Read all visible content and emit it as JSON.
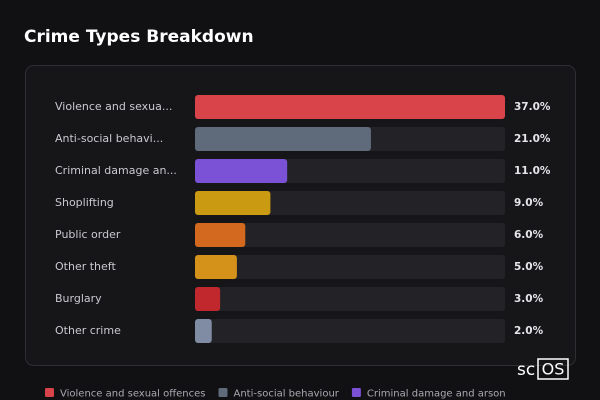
{
  "chart_data": {
    "type": "bar",
    "orientation": "horizontal",
    "title": "Crime Types Breakdown",
    "categories": [
      "Violence and sexua...",
      "Anti-social behavi...",
      "Criminal damage an...",
      "Shoplifting",
      "Public order",
      "Other theft",
      "Burglary",
      "Other crime"
    ],
    "values": [
      37,
      21,
      11,
      9,
      6,
      5,
      3,
      2
    ],
    "value_labels": [
      "37.0%",
      "21.0%",
      "11.0%",
      "9.0%",
      "6.0%",
      "5.0%",
      "3.0%",
      "2.0%"
    ],
    "colors": [
      "#d9434a",
      "#5f6b7b",
      "#7b52d6",
      "#c99a12",
      "#d2691e",
      "#d4921a",
      "#c0282d",
      "#7f8ca3"
    ],
    "legend": [
      {
        "name": "Violence and sexual offences",
        "color": "#d9434a"
      },
      {
        "name": "Anti-social behaviour",
        "color": "#5f6b7b"
      },
      {
        "name": "Criminal damage and arson",
        "color": "#7b52d6"
      }
    ]
  },
  "watermark": {
    "text": "sc",
    "boxed": "OS"
  }
}
